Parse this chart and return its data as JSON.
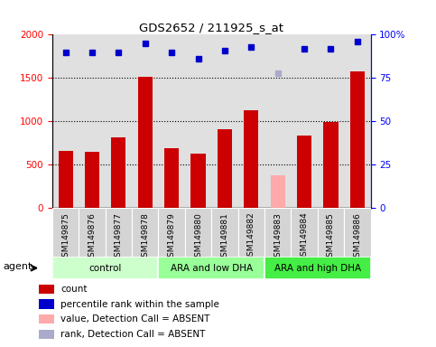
{
  "title": "GDS2652 / 211925_s_at",
  "samples": [
    "GSM149875",
    "GSM149876",
    "GSM149877",
    "GSM149878",
    "GSM149879",
    "GSM149880",
    "GSM149881",
    "GSM149882",
    "GSM149883",
    "GSM149884",
    "GSM149885",
    "GSM149886"
  ],
  "counts": [
    660,
    650,
    820,
    1510,
    690,
    630,
    910,
    1130,
    380,
    840,
    990,
    1580
  ],
  "percentile_ranks": [
    90,
    90,
    90,
    95,
    90,
    86,
    91,
    93,
    78,
    92,
    92,
    96
  ],
  "absent_mask": [
    false,
    false,
    false,
    false,
    false,
    false,
    false,
    false,
    true,
    false,
    false,
    false
  ],
  "groups": [
    {
      "label": "control",
      "start": 0,
      "end": 4,
      "color": "#ccffcc"
    },
    {
      "label": "ARA and low DHA",
      "start": 4,
      "end": 8,
      "color": "#99ff99"
    },
    {
      "label": "ARA and high DHA",
      "start": 8,
      "end": 12,
      "color": "#44ee44"
    }
  ],
  "bar_color_present": "#cc0000",
  "bar_color_absent": "#ffaaaa",
  "dot_color_present": "#0000cc",
  "dot_color_absent": "#aaaacc",
  "ylim_left": [
    0,
    2000
  ],
  "ylim_right": [
    0,
    100
  ],
  "yticks_left": [
    0,
    500,
    1000,
    1500,
    2000
  ],
  "yticks_right": [
    0,
    25,
    50,
    75,
    100
  ],
  "grid_lines": [
    500,
    1000,
    1500
  ],
  "bar_width": 0.55
}
